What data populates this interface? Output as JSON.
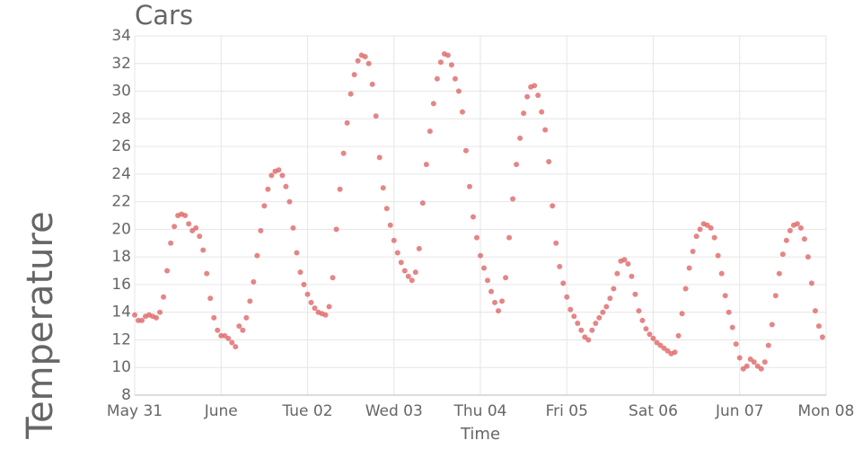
{
  "chart_data": {
    "type": "scatter",
    "title": "Cars",
    "xlabel": "Time",
    "ylabel": "Temperature",
    "color": "#e06666",
    "grid": true,
    "xlim": [
      0,
      192
    ],
    "xticks": [
      {
        "value": 0,
        "label": "May 31"
      },
      {
        "value": 24,
        "label": "June"
      },
      {
        "value": 48,
        "label": "Tue 02"
      },
      {
        "value": 72,
        "label": "Wed 03"
      },
      {
        "value": 96,
        "label": "Thu 04"
      },
      {
        "value": 120,
        "label": "Fri 05"
      },
      {
        "value": 144,
        "label": "Sat 06"
      },
      {
        "value": 168,
        "label": "Jun 07"
      },
      {
        "value": 192,
        "label": "Mon 08"
      }
    ],
    "ylim": [
      8,
      34
    ],
    "yticks": [
      8,
      10,
      12,
      14,
      16,
      18,
      20,
      22,
      24,
      26,
      28,
      30,
      32,
      34
    ],
    "x": [
      0,
      1,
      2,
      3,
      4,
      5,
      6,
      7,
      8,
      9,
      10,
      11,
      12,
      13,
      14,
      15,
      16,
      17,
      18,
      19,
      20,
      21,
      22,
      23,
      24,
      25,
      26,
      27,
      28,
      29,
      30,
      31,
      32,
      33,
      34,
      35,
      36,
      37,
      38,
      39,
      40,
      41,
      42,
      43,
      44,
      45,
      46,
      47,
      48,
      49,
      50,
      51,
      52,
      53,
      54,
      55,
      56,
      57,
      58,
      59,
      60,
      61,
      62,
      63,
      64,
      65,
      66,
      67,
      68,
      69,
      70,
      71,
      72,
      73,
      74,
      75,
      76,
      77,
      78,
      79,
      80,
      81,
      82,
      83,
      84,
      85,
      86,
      87,
      88,
      89,
      90,
      91,
      92,
      93,
      94,
      95,
      96,
      97,
      98,
      99,
      100,
      101,
      102,
      103,
      104,
      105,
      106,
      107,
      108,
      109,
      110,
      111,
      112,
      113,
      114,
      115,
      116,
      117,
      118,
      119,
      120,
      121,
      122,
      123,
      124,
      125,
      126,
      127,
      128,
      129,
      130,
      131,
      132,
      133,
      134,
      135,
      136,
      137,
      138,
      139,
      140,
      141,
      142,
      143,
      144,
      145,
      146,
      147,
      148,
      149,
      150,
      151,
      152,
      153,
      154,
      155,
      156,
      157,
      158,
      159,
      160,
      161,
      162,
      163,
      164,
      165,
      166,
      167,
      168,
      169,
      170,
      171,
      172,
      173,
      174,
      175,
      176,
      177,
      178,
      179,
      180,
      181,
      182,
      183,
      184,
      185,
      186,
      187,
      188,
      189,
      190,
      191
    ],
    "values": [
      13.8,
      13.4,
      13.4,
      13.7,
      13.8,
      13.7,
      13.6,
      14.0,
      15.1,
      17.0,
      19.0,
      20.2,
      21.0,
      21.1,
      21.0,
      20.4,
      19.9,
      20.1,
      19.5,
      18.5,
      16.8,
      15.0,
      13.6,
      12.7,
      12.3,
      12.3,
      12.1,
      11.8,
      11.5,
      13.0,
      12.7,
      13.6,
      14.8,
      16.2,
      18.1,
      19.9,
      21.7,
      22.9,
      23.9,
      24.2,
      24.3,
      23.9,
      23.1,
      22.0,
      20.1,
      18.3,
      16.9,
      16.0,
      15.3,
      14.7,
      14.3,
      14.0,
      13.9,
      13.8,
      14.4,
      16.5,
      20.0,
      22.9,
      25.5,
      27.7,
      29.8,
      31.2,
      32.2,
      32.6,
      32.5,
      32.0,
      30.5,
      28.2,
      25.2,
      23.0,
      21.5,
      20.3,
      19.2,
      18.3,
      17.6,
      17.0,
      16.6,
      16.3,
      16.9,
      18.6,
      21.9,
      24.7,
      27.1,
      29.1,
      30.9,
      32.1,
      32.7,
      32.6,
      31.9,
      30.9,
      30.0,
      28.5,
      25.7,
      23.1,
      20.9,
      19.4,
      18.1,
      17.2,
      16.3,
      15.5,
      14.7,
      14.1,
      14.8,
      16.5,
      19.4,
      22.2,
      24.7,
      26.6,
      28.4,
      29.6,
      30.3,
      30.4,
      29.7,
      28.5,
      27.2,
      24.9,
      21.7,
      19.0,
      17.3,
      16.1,
      15.1,
      14.2,
      13.7,
      13.2,
      12.7,
      12.2,
      12.0,
      12.7,
      13.2,
      13.6,
      14.0,
      14.4,
      15.0,
      15.7,
      16.8,
      17.7,
      17.8,
      17.5,
      16.6,
      15.3,
      14.1,
      13.4,
      12.8,
      12.4,
      12.1,
      11.8,
      11.6,
      11.4,
      11.2,
      11.0,
      11.1,
      12.3,
      13.9,
      15.7,
      17.2,
      18.4,
      19.5,
      20.0,
      20.4,
      20.3,
      20.1,
      19.4,
      18.1,
      16.8,
      15.2,
      14.0,
      12.9,
      11.7,
      10.7,
      9.9,
      10.1,
      10.6,
      10.4,
      10.1,
      9.9,
      10.4,
      11.6,
      13.1,
      15.2,
      16.8,
      18.2,
      19.2,
      19.9,
      20.3,
      20.4,
      20.1,
      19.3,
      18.0,
      16.1,
      14.1,
      13.0,
      12.2
    ]
  }
}
